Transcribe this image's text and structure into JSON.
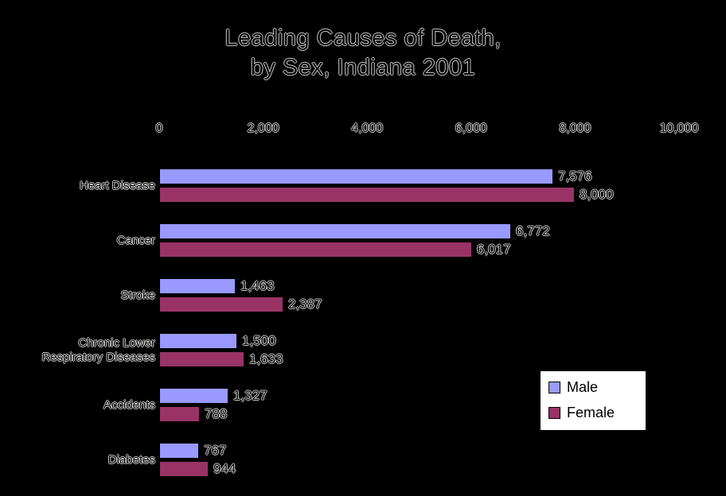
{
  "title": {
    "line1": "Leading Causes of Death,",
    "line2": "by Sex, Indiana 2001"
  },
  "chart_data": {
    "type": "bar",
    "orientation": "horizontal",
    "title": "Leading Causes of Death, by Sex, Indiana 2001",
    "categories": [
      "Heart Disease",
      "Cancer",
      "Stroke",
      "Chronic Lower\nRespiratory Diseases",
      "Accidents",
      "Diabetes"
    ],
    "series": [
      {
        "name": "Male",
        "color": "#9999FF",
        "values": [
          7576,
          6772,
          1463,
          1500,
          1327,
          767
        ],
        "labels": [
          "7,576",
          "6,772",
          "1,463",
          "1,500",
          "1,327",
          "767"
        ]
      },
      {
        "name": "Female",
        "color": "#993366",
        "values": [
          8000,
          6017,
          2387,
          1633,
          788,
          944
        ],
        "labels": [
          "8,000",
          "6,017",
          "2,387",
          "1,633",
          "788",
          "944"
        ]
      }
    ],
    "x_axis": {
      "position": "top",
      "ticks": [
        "0",
        "2,000",
        "4,000",
        "6,000",
        "8,000",
        "10,000"
      ],
      "tick_values": [
        0,
        2000,
        4000,
        6000,
        8000,
        10000
      ],
      "min": 0,
      "max": 10000
    },
    "legend": {
      "entries": [
        "Male",
        "Female"
      ],
      "background": "#FFFFFF",
      "text_color": "#000000"
    },
    "background_color": "#000000",
    "grid": false
  }
}
